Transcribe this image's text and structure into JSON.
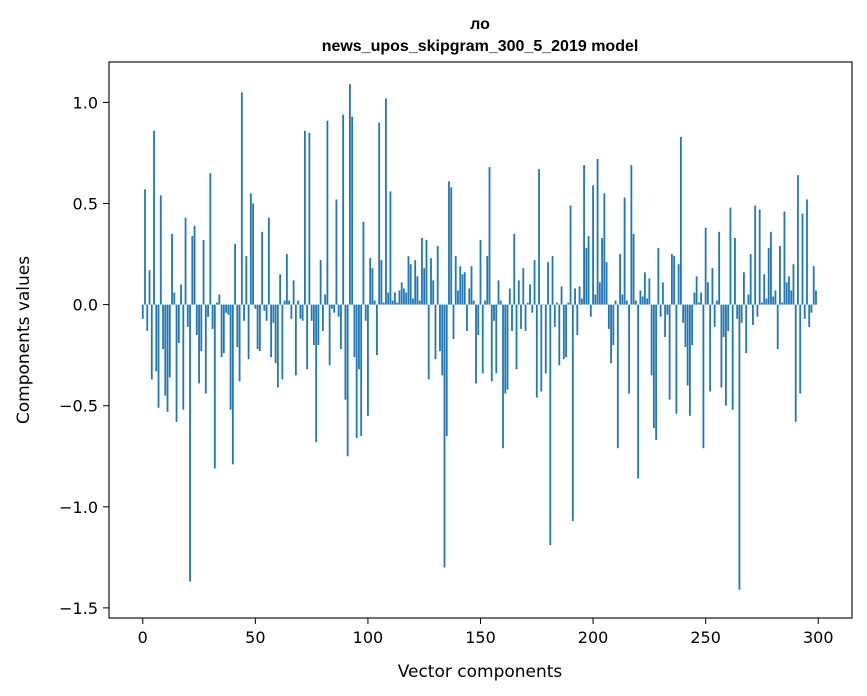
{
  "chart_data": {
    "type": "bar",
    "title_line1": "ло",
    "title_line2": "news_upos_skipgram_300_5_2019 model",
    "xlabel": "Vector components",
    "ylabel": "Components values",
    "xlim": [
      -15,
      315
    ],
    "ylim": [
      -1.55,
      1.2
    ],
    "xticks": [
      0,
      50,
      100,
      150,
      200,
      250,
      300
    ],
    "xtick_labels": [
      "0",
      "50",
      "100",
      "150",
      "200",
      "250",
      "300"
    ],
    "yticks": [
      -1.5,
      -1.0,
      -0.5,
      0.0,
      0.5,
      1.0
    ],
    "ytick_labels": [
      "−1.5",
      "−1.0",
      "−0.5",
      "0.0",
      "0.5",
      "1.0"
    ],
    "bar_color": "#1f77b4",
    "values": [
      -0.07,
      0.57,
      -0.13,
      0.17,
      -0.37,
      0.86,
      -0.33,
      -0.51,
      0.54,
      -0.22,
      -0.45,
      -0.53,
      -0.36,
      0.35,
      0.06,
      -0.58,
      -0.19,
      0.1,
      -0.52,
      0.43,
      -0.11,
      -1.37,
      0.34,
      0.39,
      -0.15,
      -0.39,
      -0.23,
      0.32,
      -0.44,
      -0.06,
      0.65,
      -0.12,
      -0.81,
      0.01,
      0.05,
      -0.26,
      -0.24,
      -0.04,
      -0.05,
      -0.52,
      -0.79,
      0.3,
      -0.21,
      -0.38,
      1.05,
      -0.08,
      0.24,
      -0.27,
      0.55,
      0.5,
      -0.02,
      -0.22,
      -0.23,
      0.36,
      -0.03,
      -0.08,
      0.43,
      -0.26,
      -0.09,
      -0.29,
      -0.41,
      0.15,
      -0.37,
      0.02,
      0.25,
      0.02,
      -0.07,
      0.12,
      -0.35,
      0.02,
      -0.07,
      -0.08,
      0.86,
      -0.32,
      0.85,
      -0.08,
      -0.2,
      -0.68,
      -0.2,
      0.22,
      -0.13,
      0.05,
      0.91,
      -0.3,
      -0.02,
      -0.04,
      0.52,
      -0.06,
      -0.22,
      0.94,
      -0.47,
      -0.75,
      1.09,
      0.93,
      -0.26,
      -0.66,
      -0.32,
      -0.65,
      0.41,
      -0.08,
      -0.55,
      0.23,
      0.18,
      0.02,
      -0.25,
      0.9,
      0.22,
      0.01,
      1.02,
      0.06,
      0.56,
      0.02,
      0.06,
      0.01,
      0.07,
      0.11,
      0.08,
      0.06,
      0.24,
      0.2,
      0.03,
      0.22,
      0.14,
      0.02,
      0.33,
      0.18,
      0.32,
      -0.37,
      0.23,
      0.12,
      -0.27,
      0.29,
      -0.23,
      -0.35,
      -1.3,
      -0.65,
      0.61,
      0.58,
      -0.17,
      0.24,
      0.07,
      0.19,
      0.15,
      0.16,
      -0.13,
      0.08,
      0.19,
      0.02,
      -0.39,
      -0.15,
      0.32,
      -0.34,
      0.02,
      0.24,
      0.68,
      -0.38,
      -0.08,
      -0.34,
      0.12,
      0.02,
      -0.71,
      -0.44,
      -0.42,
      0.08,
      -0.13,
      0.35,
      -0.32,
      0.12,
      -0.12,
      0.18,
      -0.13,
      0.01,
      0.1,
      -0.04,
      0.22,
      -0.46,
      0.67,
      -0.43,
      0.0,
      -0.34,
      0.21,
      -1.19,
      0.24,
      -0.11,
      0.01,
      -0.3,
      0.09,
      -0.27,
      -0.26,
      0.01,
      0.49,
      -1.07,
      0.08,
      -0.15,
      0.09,
      0.03,
      0.69,
      0.28,
      0.34,
      -0.06,
      0.59,
      0.05,
      0.72,
      0.11,
      0.33,
      0.55,
      0.21,
      -0.12,
      -0.29,
      -0.2,
      0.02,
      -0.71,
      0.25,
      0.05,
      0.53,
      0.02,
      -0.44,
      0.69,
      0.35,
      0.02,
      -0.86,
      0.07,
      0.04,
      0.16,
      0.03,
      0.13,
      -0.35,
      -0.61,
      -0.67,
      0.28,
      -0.06,
      0.11,
      -0.16,
      -0.05,
      -0.47,
      0.25,
      0.24,
      -0.54,
      0.2,
      0.83,
      -0.09,
      -0.21,
      -0.4,
      -0.55,
      -0.2,
      0.06,
      0.14,
      0.01,
      0.06,
      -0.71,
      0.38,
      0.11,
      -0.43,
      0.18,
      -0.11,
      0.02,
      0.36,
      -0.41,
      -0.16,
      -0.5,
      -0.13,
      0.48,
      -0.52,
      0.33,
      -0.07,
      -1.41,
      -0.09,
      0.16,
      -0.24,
      0.05,
      0.25,
      -0.1,
      0.49,
      -0.06,
      0.47,
      0.01,
      0.15,
      0.03,
      0.28,
      0.36,
      0.04,
      0.07,
      -0.22,
      0.29,
      0.01,
      0.46,
      0.11,
      0.14,
      0.07,
      0.2,
      -0.58,
      0.64,
      -0.44,
      0.45,
      -0.07,
      0.52,
      -0.11,
      -0.04,
      0.19,
      0.07
    ]
  }
}
